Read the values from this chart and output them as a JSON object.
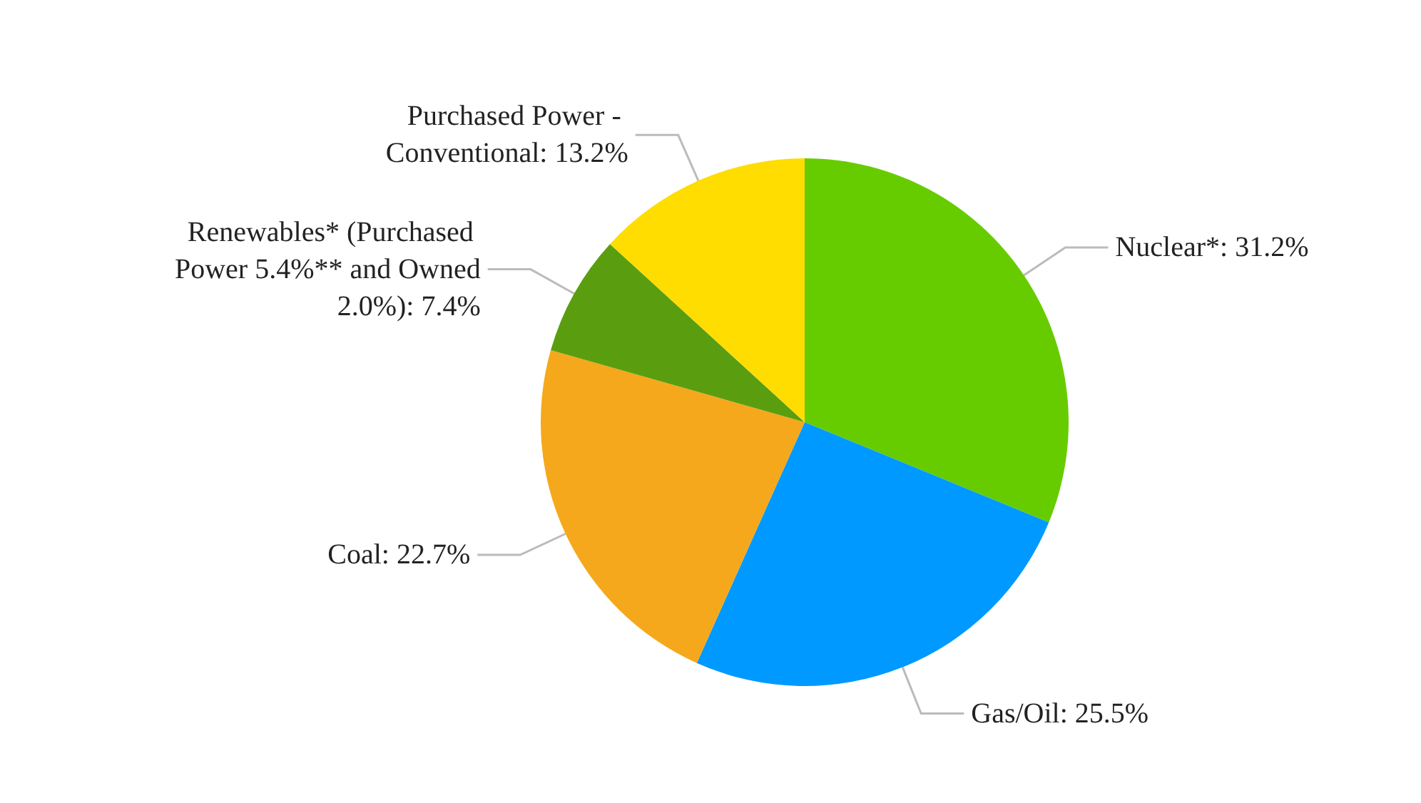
{
  "chart_data": {
    "type": "pie",
    "categories": [
      "Nuclear*",
      "Gas/Oil",
      "Coal",
      "Renewables* (Purchased Power 5.4%** and Owned 2.0%)",
      "Purchased Power - Conventional"
    ],
    "values": [
      31.2,
      25.5,
      22.7,
      7.4,
      13.2
    ],
    "value_labels": [
      "31.2%",
      "25.5%",
      "22.7%",
      "7.4%",
      "13.2%"
    ],
    "colors": [
      "#66cc00",
      "#0099ff",
      "#f5a81c",
      "#5a9e0f",
      "#ffdd00"
    ],
    "data_labels": false
  }
}
